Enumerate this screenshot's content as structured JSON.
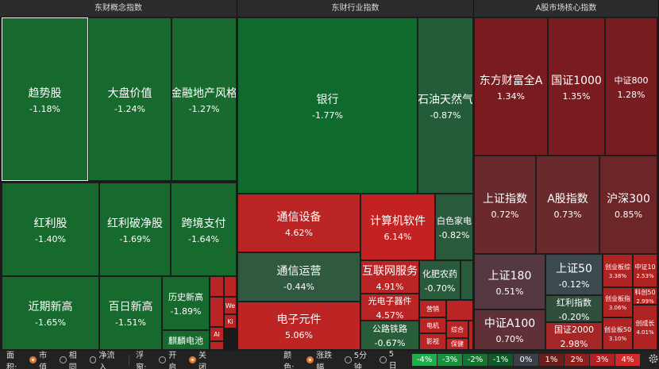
{
  "panels": [
    {
      "title": "东财概念指数",
      "tiles": [
        {
          "name": "趋势股",
          "change": "-1.18%"
        },
        {
          "name": "大盘价值",
          "change": "-1.24%"
        },
        {
          "name": "金融地产风格",
          "change": "-1.27%"
        },
        {
          "name": "红利股",
          "change": "-1.40%"
        },
        {
          "name": "红利破净股",
          "change": "-1.69%"
        },
        {
          "name": "跨境支付",
          "change": "-1.64%"
        },
        {
          "name": "近期新高",
          "change": "-1.65%"
        },
        {
          "name": "百日新高",
          "change": "-1.51%"
        },
        {
          "name": "历史新高",
          "change": "-1.89%"
        },
        {
          "name": "麒麟电池"
        },
        {
          "name": "We"
        },
        {
          "name": "Ki"
        },
        {
          "name": "AI"
        }
      ]
    },
    {
      "title": "东财行业指数",
      "tiles": [
        {
          "name": "银行",
          "change": "-1.77%"
        },
        {
          "name": "石油天然气",
          "change": "-0.87%"
        },
        {
          "name": "通信设备",
          "change": "4.62%"
        },
        {
          "name": "通信运营",
          "change": "-0.44%"
        },
        {
          "name": "电子元件",
          "change": "5.06%"
        },
        {
          "name": "计算机软件",
          "change": "6.14%"
        },
        {
          "name": "白色家电",
          "change": "-0.82%"
        },
        {
          "name": "互联网服务",
          "change": "4.91%"
        },
        {
          "name": "光电子器件",
          "change": "4.57%"
        },
        {
          "name": "公路铁路",
          "change": "-0.67%"
        },
        {
          "name": "化肥农药",
          "change": "-0.70%"
        },
        {
          "name": "营销"
        },
        {
          "name": "电机"
        },
        {
          "name": "影视"
        },
        {
          "name": "综合"
        },
        {
          "name": "保健"
        }
      ]
    },
    {
      "title": "A股市场核心指数",
      "tiles": [
        {
          "name": "东方财富全A",
          "change": "1.34%"
        },
        {
          "name": "国证1000",
          "change": "1.35%"
        },
        {
          "name": "中证800",
          "change": "1.28%"
        },
        {
          "name": "上证指数",
          "change": "0.72%"
        },
        {
          "name": "A股指数",
          "change": "0.73%"
        },
        {
          "name": "沪深300",
          "change": "0.85%"
        },
        {
          "name": "上证180",
          "change": "0.51%"
        },
        {
          "name": "中证A100",
          "change": "0.70%"
        },
        {
          "name": "上证50",
          "change": "-0.12%"
        },
        {
          "name": "红利指数",
          "change": "-0.20%"
        },
        {
          "name": "国证2000",
          "change": "2.98%"
        },
        {
          "name": "创业板综",
          "change": "3.38%"
        },
        {
          "name": "中证10",
          "change": "2.53%"
        },
        {
          "name": "创业板指",
          "change": "3.06%"
        },
        {
          "name": "科创50",
          "change": "2.99%"
        },
        {
          "name": "创业板50",
          "change": "3.10%"
        },
        {
          "name": "创成长",
          "change": "4.01%"
        }
      ]
    }
  ],
  "footer": {
    "area_label": "面积:",
    "area_options": [
      "市值",
      "相同",
      "净流入"
    ],
    "float_label": "浮窗:",
    "float_options": [
      "开启",
      "关闭"
    ],
    "color_label": "颜色:",
    "color_options": [
      "涨跌幅",
      "5分钟",
      "5日"
    ],
    "legend": [
      "-4%",
      "-3%",
      "-2%",
      "-1%",
      "0%",
      "1%",
      "2%",
      "3%",
      "4%"
    ]
  }
}
